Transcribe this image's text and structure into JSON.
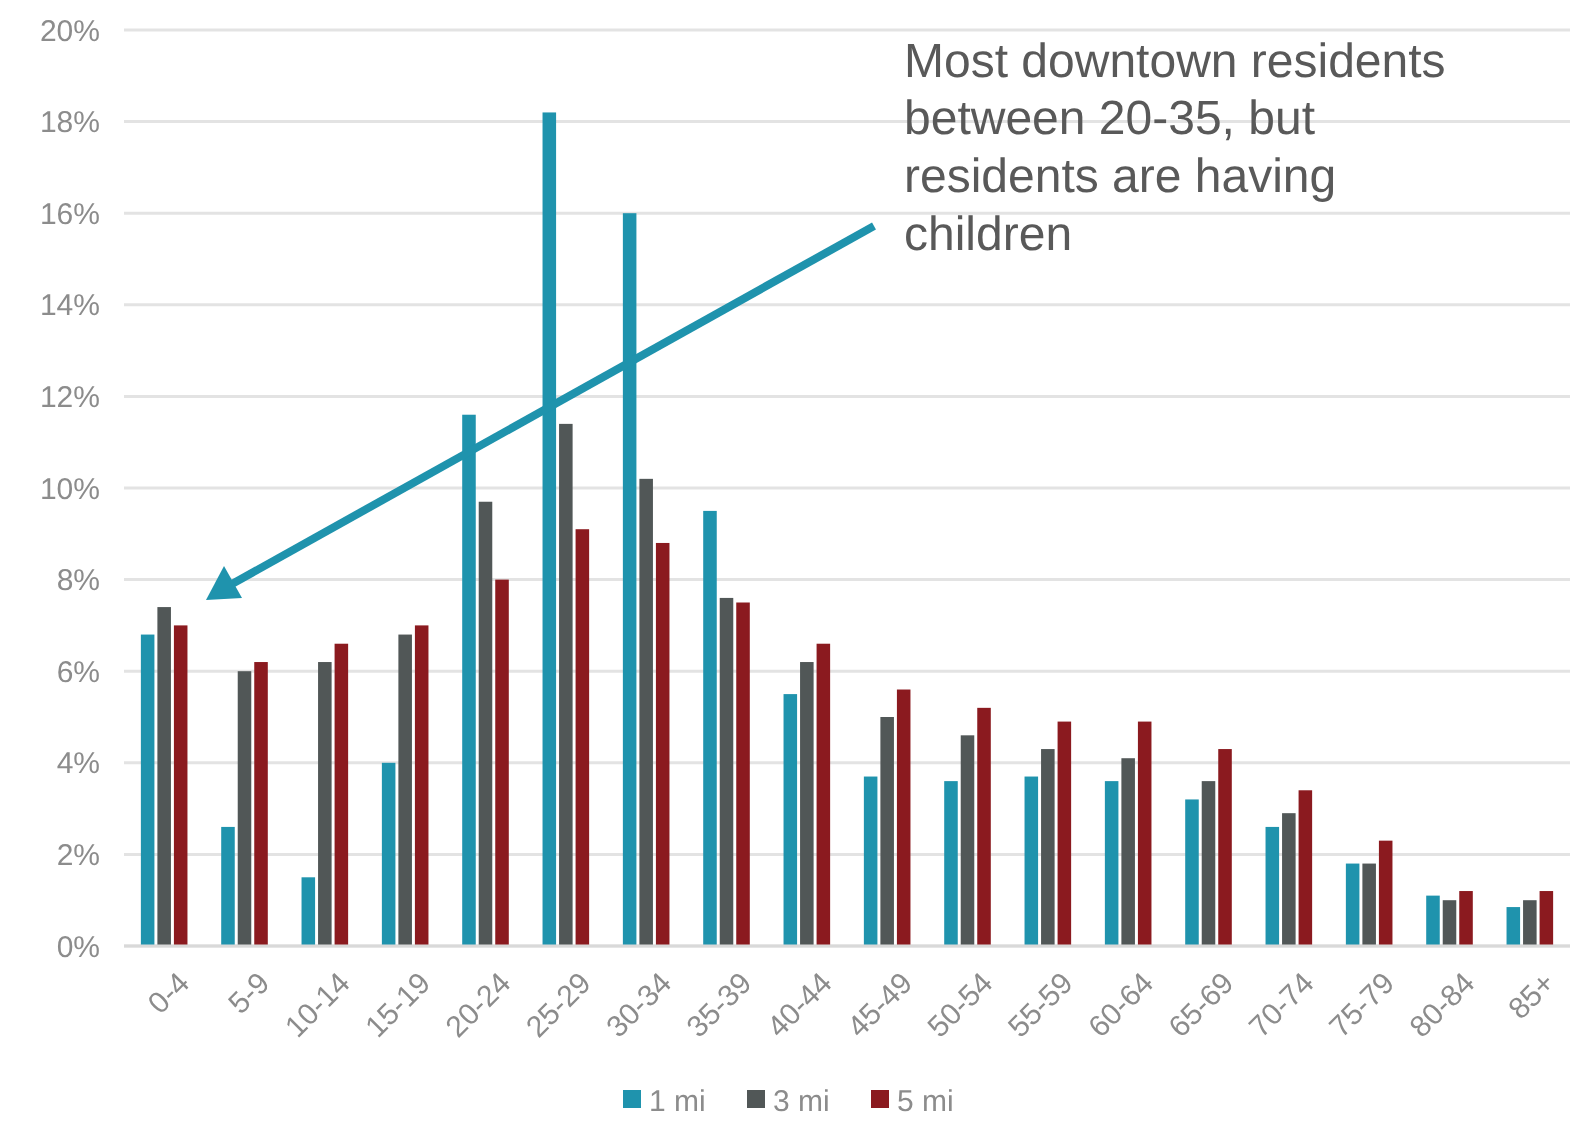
{
  "chart_data": {
    "type": "bar",
    "categories": [
      "0-4",
      "5-9",
      "10-14",
      "15-19",
      "20-24",
      "25-29",
      "30-34",
      "35-39",
      "40-44",
      "45-49",
      "50-54",
      "55-59",
      "60-64",
      "65-69",
      "70-74",
      "75-79",
      "80-84",
      "85+"
    ],
    "series": [
      {
        "name": "1 mi",
        "color": "#1f93ad",
        "values": [
          6.8,
          2.6,
          1.5,
          4.0,
          11.6,
          18.2,
          16.0,
          9.5,
          5.5,
          3.7,
          3.6,
          3.7,
          3.6,
          3.2,
          2.6,
          1.8,
          1.1,
          0.85
        ]
      },
      {
        "name": "3 mi",
        "color": "#515757",
        "values": [
          7.4,
          6.0,
          6.2,
          6.8,
          9.7,
          11.4,
          10.2,
          7.6,
          6.2,
          5.0,
          4.6,
          4.3,
          4.1,
          3.6,
          2.9,
          1.8,
          1.0,
          1.0
        ]
      },
      {
        "name": "5 mi",
        "color": "#8b1a1f",
        "values": [
          7.0,
          6.2,
          6.6,
          7.0,
          8.0,
          9.1,
          8.8,
          7.5,
          6.6,
          5.6,
          5.2,
          4.9,
          4.9,
          4.3,
          3.4,
          2.3,
          1.2,
          1.2
        ]
      }
    ],
    "ylim": [
      0,
      20
    ],
    "yticks": [
      {
        "value": 0,
        "label": "0%"
      },
      {
        "value": 2,
        "label": "2%"
      },
      {
        "value": 4,
        "label": "4%"
      },
      {
        "value": 6,
        "label": "6%"
      },
      {
        "value": 8,
        "label": "8%"
      },
      {
        "value": 10,
        "label": "10%"
      },
      {
        "value": 12,
        "label": "12%"
      },
      {
        "value": 14,
        "label": "14%"
      },
      {
        "value": 16,
        "label": "16%"
      },
      {
        "value": 18,
        "label": "18%"
      },
      {
        "value": 20,
        "label": "20%"
      }
    ],
    "grid": "y",
    "legend": "bottom",
    "annotations": [
      "Most downtown residents between 20-35, but residents are having children"
    ]
  }
}
